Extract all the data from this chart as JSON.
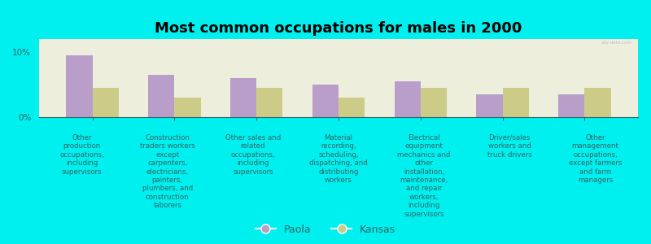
{
  "title": "Most common occupations for males in 2000",
  "background_color": "#00EFEF",
  "plot_background_color": "#EEEEDD",
  "bar_color_paola": "#B89EC8",
  "bar_color_kansas": "#CCCC88",
  "categories": [
    "Other\nproduction\noccupations,\nincluding\nsupervisors",
    "Construction\ntraders workers\nexcept\ncarpenters,\nelectricians,\npainters,\nplumbers, and\nconstruction\nlaborers",
    "Other sales and\nrelated\noccupations,\nincluding\nsupervisors",
    "Material\nrecording,\nscheduling,\ndispatching, and\ndistributing\nworkers",
    "Electrical\nequipment\nmechanics and\nother\ninstallation,\nmaintenance,\nand repair\nworkers,\nincluding\nsupervisors",
    "Driver/sales\nworkers and\ntruck drivers",
    "Other\nmanagement\noccupations,\nexcept farmers\nand farm\nmanagers"
  ],
  "paola_values": [
    9.5,
    6.5,
    6.0,
    5.0,
    5.5,
    3.5,
    3.5
  ],
  "kansas_values": [
    4.5,
    3.0,
    4.5,
    3.0,
    4.5,
    4.5,
    4.5
  ],
  "ylim": [
    0,
    12
  ],
  "yticks": [
    0,
    10
  ],
  "ytick_labels": [
    "0%",
    "10%"
  ],
  "legend_labels": [
    "Paola",
    "Kansas"
  ],
  "text_color": "#336666",
  "label_fontsize": 6.2,
  "title_fontsize": 13,
  "watermark": "city-data.com"
}
